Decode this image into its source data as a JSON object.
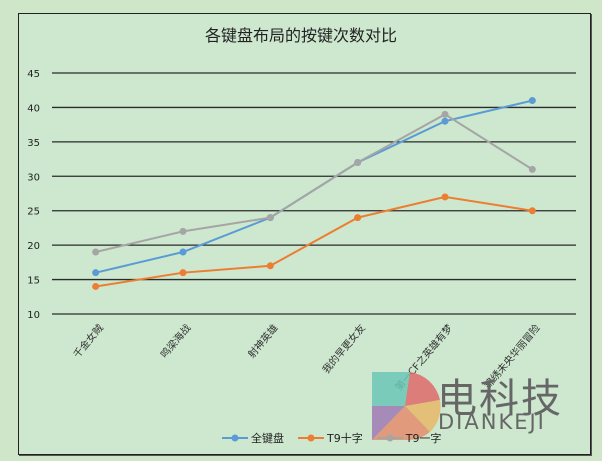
{
  "chart_data": {
    "type": "line",
    "title": "各键盘布局的按键次数对比",
    "xlabel": "",
    "ylabel": "",
    "categories": [
      "千金女贼",
      "鸣梁海战",
      "射神英雄",
      "我的早更女友",
      "第一CF之英雄有梦",
      "锦绣未央华丽冒险"
    ],
    "series": [
      {
        "name": "全键盘",
        "color": "#5b9bd5",
        "values": [
          16,
          19,
          24,
          32,
          38,
          41
        ]
      },
      {
        "name": "T9十字",
        "color": "#ed7d31",
        "values": [
          14,
          16,
          17,
          24,
          27,
          25
        ]
      },
      {
        "name": "T9一字",
        "color": "#a5a5a5",
        "values": [
          19,
          22,
          24,
          32,
          39,
          31
        ]
      }
    ],
    "ylim": [
      10,
      45
    ],
    "yticks": [
      10,
      15,
      20,
      25,
      30,
      35,
      40,
      45
    ],
    "grid": true,
    "legend_position": "bottom"
  },
  "watermark": {
    "cn": "电科技",
    "en": "DIANKEJI"
  }
}
